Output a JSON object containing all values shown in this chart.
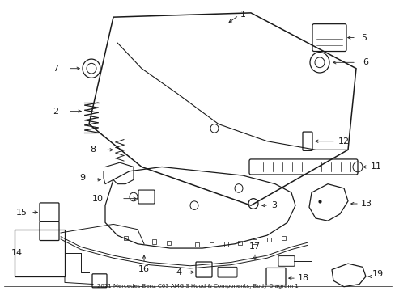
{
  "title": "2021 Mercedes-Benz C63 AMG S Hood & Components, Body Diagram 1",
  "bg_color": "#ffffff",
  "line_color": "#1a1a1a",
  "fig_width": 4.89,
  "fig_height": 3.6,
  "dpi": 100
}
